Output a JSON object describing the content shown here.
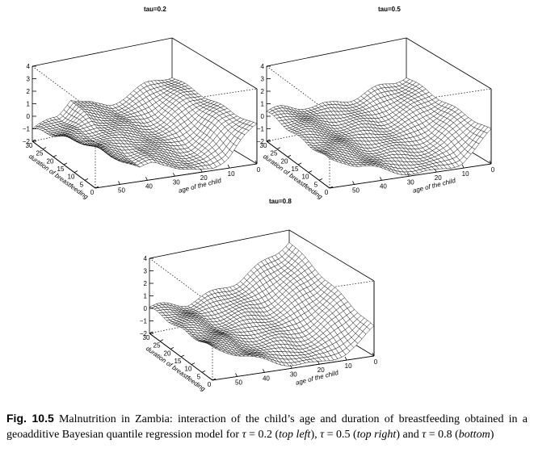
{
  "figure": {
    "label": "Fig. 10.5",
    "caption_parts": [
      {
        "text": " Malnutrition in Zambia: interaction of the child’s age and duration of breastfeeding obtained in a geoadditive Bayesian quantile regression model for ",
        "style": "normal"
      },
      {
        "text": "τ",
        "style": "italic"
      },
      {
        "text": " = 0.2 (",
        "style": "normal"
      },
      {
        "text": "top left",
        "style": "italic"
      },
      {
        "text": "), ",
        "style": "normal"
      },
      {
        "text": "τ",
        "style": "italic"
      },
      {
        "text": " = 0.5 (",
        "style": "normal"
      },
      {
        "text": "top right",
        "style": "italic"
      },
      {
        "text": ") and ",
        "style": "normal"
      },
      {
        "text": "τ",
        "style": "italic"
      },
      {
        "text": " = 0.8 (",
        "style": "normal"
      },
      {
        "text": "bottom",
        "style": "italic"
      },
      {
        "text": ")",
        "style": "normal"
      }
    ]
  },
  "chart_data": [
    {
      "type": "surface",
      "title": "tau=0.2",
      "xlabel": "age of the child",
      "ylabel": "duration of breastfeeding",
      "zlabel": "",
      "x_ticks": [
        "50",
        "40",
        "30",
        "20",
        "10",
        "0"
      ],
      "y_ticks": [
        "30",
        "25",
        "20",
        "15",
        "10",
        "5",
        "0"
      ],
      "z_ticks": [
        "4",
        "3",
        "2",
        "1",
        "0",
        "−1",
        "−2"
      ],
      "zlim": [
        -2,
        4
      ],
      "surface_profile": {
        "front_edge_z_by_age_from_59_to_0": [
          1.6,
          0.6,
          -0.3,
          -1.1,
          -0.6,
          -0.9,
          -1.6,
          -2.0,
          -1.8,
          -1.1,
          0.2,
          1.0
        ],
        "back_edge_z_by_age_from_59_to_0": [
          -1.0,
          -0.8,
          -0.4,
          0.9,
          0.3,
          -0.2,
          -0.3,
          0.0,
          0.3,
          0.7,
          1.0,
          1.0
        ]
      }
    },
    {
      "type": "surface",
      "title": "tau=0.5",
      "xlabel": "age of the child",
      "ylabel": "duration of breastfeeding",
      "zlabel": "",
      "x_ticks": [
        "50",
        "40",
        "30",
        "20",
        "10",
        "0"
      ],
      "y_ticks": [
        "30",
        "25",
        "20",
        "15",
        "10",
        "5",
        "0"
      ],
      "z_ticks": [
        "4",
        "3",
        "2",
        "1",
        "0",
        "−1",
        "−2"
      ],
      "zlim": [
        -2,
        4
      ],
      "surface_profile": {
        "front_edge_z_by_age_from_59_to_0": [
          0.3,
          0.0,
          -0.6,
          -1.0,
          -1.3,
          -1.6,
          -1.9,
          -2.0,
          -1.8,
          -1.5,
          -0.6,
          0.6
        ],
        "back_edge_z_by_age_from_59_to_0": [
          0.4,
          0.4,
          0.3,
          0.2,
          0.0,
          -0.1,
          0.0,
          0.1,
          0.3,
          0.5,
          0.7,
          1.0
        ]
      }
    },
    {
      "type": "surface",
      "title": "tau=0.8",
      "xlabel": "age of the child",
      "ylabel": "duration of breastfeeding",
      "zlabel": "",
      "x_ticks": [
        "50",
        "40",
        "30",
        "20",
        "10",
        "0"
      ],
      "y_ticks": [
        "30",
        "25",
        "20",
        "15",
        "10",
        "5",
        "0"
      ],
      "z_ticks": [
        "4",
        "3",
        "2",
        "1",
        "0",
        "−1",
        "−2"
      ],
      "zlim": [
        -2,
        4
      ],
      "surface_profile": {
        "front_edge_z_by_age_from_59_to_0": [
          0.6,
          0.2,
          -0.4,
          -0.9,
          -1.2,
          -1.5,
          -1.8,
          -2.0,
          -1.8,
          -1.4,
          -0.8,
          0.2
        ],
        "back_edge_z_by_age_from_59_to_0": [
          0.1,
          0.0,
          -0.1,
          -0.2,
          0.0,
          0.2,
          0.5,
          0.8,
          1.3,
          1.8,
          2.4,
          3.2
        ]
      }
    }
  ]
}
